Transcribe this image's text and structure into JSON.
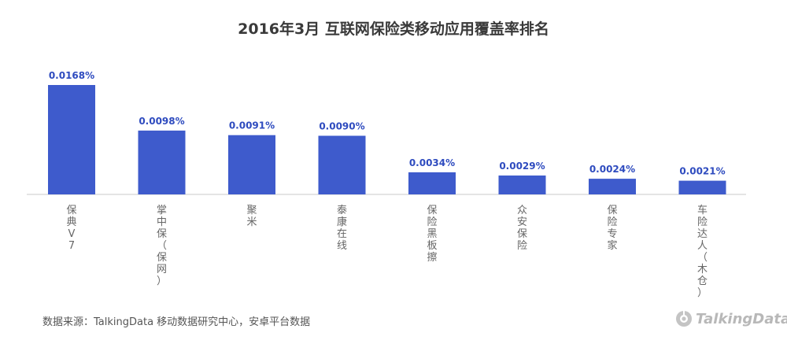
{
  "chart_data": {
    "type": "bar",
    "title": "2016年3月 互联网保险类移动应用覆盖率排名",
    "categories": [
      "保典V7",
      "掌中保（保网）",
      "聚米",
      "泰康在线",
      "保险黑板擦",
      "众安保险",
      "保险专家",
      "车险达人（木仓）"
    ],
    "values": [
      0.0168,
      0.0098,
      0.0091,
      0.009,
      0.0034,
      0.0029,
      0.0024,
      0.0021
    ],
    "value_labels": [
      "0.0168%",
      "0.0098%",
      "0.0091%",
      "0.0090%",
      "0.0034%",
      "0.0029%",
      "0.0024%",
      "0.0021%"
    ],
    "unit": "%",
    "ylim": [
      0,
      0.0168
    ],
    "grid": false,
    "legend": "none",
    "bar_color": "#3e5bcc",
    "label_color": "#2e4bbf",
    "tick_label_color": "#666666",
    "axis_color": "#c8c8c8"
  },
  "footer": {
    "source": "数据来源：TalkingData 移动数据研究中心，安卓平台数据",
    "brand": "TalkingData"
  }
}
